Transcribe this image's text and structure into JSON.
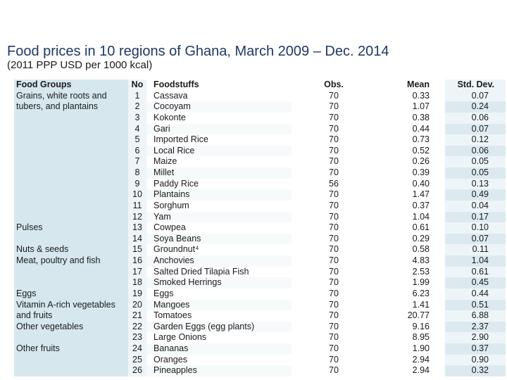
{
  "title": "Food prices in 10 regions of Ghana, March 2009 – Dec. 2014",
  "subtitle": "(2011 PPP USD per 1000 kcal)",
  "headers": {
    "group": "Food Groups",
    "no": "No",
    "food": "Foodstuffs",
    "obs": "Obs.",
    "mean": "Mean",
    "sd": "Std. Dev."
  },
  "groups": [
    {
      "label": "Grains, white roots and tubers, and plantains"
    },
    {
      "label": "Pulses"
    },
    {
      "label": "Nuts & seeds"
    },
    {
      "label": "Meat, poultry and fish"
    },
    {
      "label": "Eggs"
    },
    {
      "label": "Vitamin A-rich vegetables and fruits"
    },
    {
      "label": "Other vegetables"
    },
    {
      "label": "Other fruits"
    }
  ],
  "rows": [
    {
      "no": "1",
      "food": "Cassava",
      "obs": "70",
      "mean": "0.33",
      "sd": "0.07"
    },
    {
      "no": "2",
      "food": "Cocoyam",
      "obs": "70",
      "mean": "1.07",
      "sd": "0.24"
    },
    {
      "no": "3",
      "food": "Kokonte",
      "obs": "70",
      "mean": "0.38",
      "sd": "0.06"
    },
    {
      "no": "4",
      "food": "Gari",
      "obs": "70",
      "mean": "0.44",
      "sd": "0.07"
    },
    {
      "no": "5",
      "food": "Imported Rice",
      "obs": "70",
      "mean": "0.73",
      "sd": "0.12"
    },
    {
      "no": "6",
      "food": "Local Rice",
      "obs": "70",
      "mean": "0.52",
      "sd": "0.06"
    },
    {
      "no": "7",
      "food": "Maize",
      "obs": "70",
      "mean": "0.26",
      "sd": "0.05"
    },
    {
      "no": "8",
      "food": "Millet",
      "obs": "70",
      "mean": "0.39",
      "sd": "0.05"
    },
    {
      "no": "9",
      "food": "Paddy Rice",
      "obs": "56",
      "mean": "0.40",
      "sd": "0.13"
    },
    {
      "no": "10",
      "food": "Plantains",
      "obs": "70",
      "mean": "1.47",
      "sd": "0.49"
    },
    {
      "no": "11",
      "food": "Sorghum",
      "obs": "70",
      "mean": "0.37",
      "sd": "0.04"
    },
    {
      "no": "12",
      "food": "Yam",
      "obs": "70",
      "mean": "1.04",
      "sd": "0.17"
    },
    {
      "no": "13",
      "food": "Cowpea",
      "obs": "70",
      "mean": "0.61",
      "sd": "0.10"
    },
    {
      "no": "14",
      "food": "Soya Beans",
      "obs": "70",
      "mean": "0.29",
      "sd": "0.07"
    },
    {
      "no": "15",
      "food": "Groundnut⁴",
      "obs": "70",
      "mean": "0.58",
      "sd": "0.11"
    },
    {
      "no": "16",
      "food": "Anchovies",
      "obs": "70",
      "mean": "4.83",
      "sd": "1.04"
    },
    {
      "no": "17",
      "food": "Salted Dried Tilapia Fish",
      "obs": "70",
      "mean": "2.53",
      "sd": "0.61"
    },
    {
      "no": "18",
      "food": "Smoked Herrings",
      "obs": "70",
      "mean": "1.99",
      "sd": "0.45"
    },
    {
      "no": "19",
      "food": "Eggs",
      "obs": "70",
      "mean": "6.23",
      "sd": "0.44"
    },
    {
      "no": "20",
      "food": "Mangoes",
      "obs": "70",
      "mean": "1.41",
      "sd": "0.51"
    },
    {
      "no": "21",
      "food": "Tomatoes",
      "obs": "70",
      "mean": "20.77",
      "sd": "6.88"
    },
    {
      "no": "22",
      "food": "Garden Eggs (egg plants)",
      "obs": "70",
      "mean": "9.16",
      "sd": "2.37"
    },
    {
      "no": "23",
      "food": "Large Onions",
      "obs": "70",
      "mean": "8.95",
      "sd": "2.90"
    },
    {
      "no": "24",
      "food": "Bananas",
      "obs": "70",
      "mean": "1.90",
      "sd": "0.37"
    },
    {
      "no": "25",
      "food": "Oranges",
      "obs": "70",
      "mean": "2.94",
      "sd": "0.90"
    },
    {
      "no": "26",
      "food": "Pineapples",
      "obs": "70",
      "mean": "2.94",
      "sd": "0.32"
    }
  ]
}
